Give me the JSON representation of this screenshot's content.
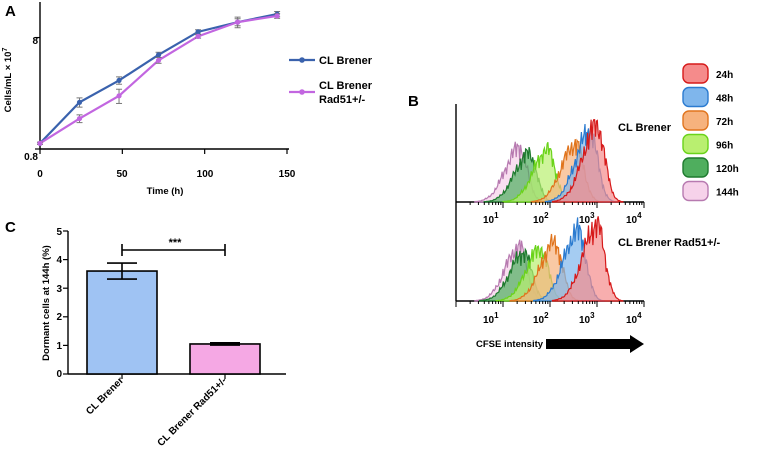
{
  "chart_data": [
    {
      "id": "A",
      "panel_label": "A",
      "type": "line",
      "xlabel": "Time (h)",
      "ylabel": "Cells/mL × 10",
      "ylabel_exponent": "7",
      "xticks": [
        "0",
        "50",
        "100",
        "150"
      ],
      "yticks": [
        "0.8",
        "8"
      ],
      "xlim": [
        0,
        150
      ],
      "scale": "log",
      "ylim": [
        0.8,
        16
      ],
      "series": [
        {
          "name": "CL Brener",
          "color": "#3a62ad",
          "x": [
            0,
            24,
            48,
            72,
            96,
            120,
            144
          ],
          "y": [
            0.9,
            2.1,
            3.3,
            5.6,
            9.0,
            11.0,
            13.0
          ],
          "err": [
            0.02,
            0.2,
            0.25,
            0.3,
            0.4,
            0.8,
            0.7
          ]
        },
        {
          "name": "CL Brener Rad51+/-",
          "name_lines": [
            "CL Brener",
            "Rad51+/-"
          ],
          "color": "#c266e0",
          "x": [
            0,
            24,
            48,
            72,
            96,
            120,
            144
          ],
          "y": [
            0.9,
            1.5,
            2.4,
            5.0,
            8.2,
            11.0,
            12.5
          ],
          "err": [
            0.02,
            0.12,
            0.35,
            0.3,
            0.3,
            1.2,
            0.6
          ]
        }
      ]
    },
    {
      "id": "C",
      "panel_label": "C",
      "type": "bar",
      "categories": [
        "CL Brener",
        "CL Brener Rad51+/-"
      ],
      "values": [
        3.6,
        1.05
      ],
      "errors": [
        0.28,
        0.04
      ],
      "colors": [
        "#9fc3f3",
        "#f5a8e4"
      ],
      "ylabel": "Dormant cells at 144h (%)",
      "ylim": [
        0,
        5
      ],
      "yticks": [
        "0",
        "1",
        "2",
        "3",
        "4",
        "5"
      ],
      "significance": "***"
    },
    {
      "id": "B",
      "panel_label": "B",
      "type": "area",
      "xlabel": "CFSE intensity",
      "scale": "log",
      "xlim": [
        0,
        4
      ],
      "xtick_base": "10",
      "xtick_exponents": [
        "1",
        "2",
        "3",
        "4"
      ],
      "legend": [
        {
          "label": "24h",
          "fill": "#f58b8b",
          "stroke": "#d61a1a"
        },
        {
          "label": "48h",
          "fill": "#7fb6ec",
          "stroke": "#2b7bd0"
        },
        {
          "label": "72h",
          "fill": "#f6b27d",
          "stroke": "#e0741d"
        },
        {
          "label": "96h",
          "fill": "#b9ef70",
          "stroke": "#6ad31a"
        },
        {
          "label": "120h",
          "fill": "#4fae5e",
          "stroke": "#1e7a2e"
        },
        {
          "label": "144h",
          "fill": "#f6d2ea",
          "stroke": "#b77ab0"
        }
      ],
      "histograms": [
        {
          "title": "CL Brener",
          "peaks_log10": {
            "24h": 3.0,
            "48h": 2.85,
            "72h": 2.55,
            "96h": 1.95,
            "120h": 1.55,
            "144h": 1.35
          }
        },
        {
          "title": "CL Brener Rad51+/-",
          "peaks_log10": {
            "24h": 3.0,
            "48h": 2.6,
            "72h": 2.1,
            "96h": 1.8,
            "120h": 1.45,
            "144h": 1.35
          }
        }
      ]
    }
  ]
}
